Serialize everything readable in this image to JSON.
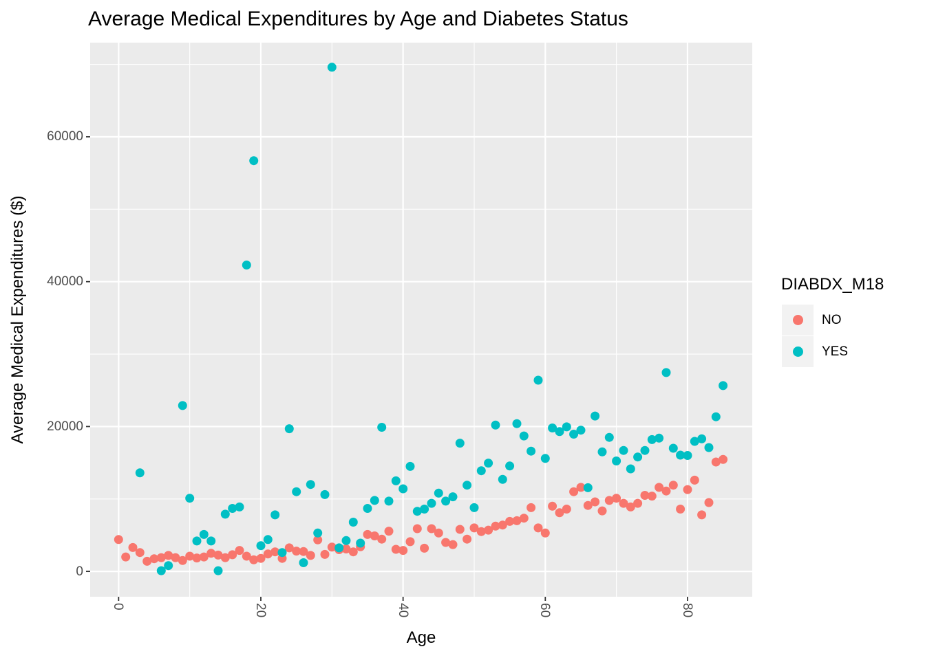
{
  "chart_data": {
    "type": "scatter",
    "title": "Average Medical Expenditures by Age and Diabetes Status",
    "xlabel": "Age",
    "ylabel": "Average Medical Expenditures ($)",
    "legend_title": "DIABDX_M18",
    "legend_position": "right",
    "grid": "on",
    "x_ticks": [
      0,
      20,
      40,
      60,
      80
    ],
    "x_minor_ticks": [
      10,
      30,
      50,
      70
    ],
    "y_ticks": [
      0,
      20000,
      40000,
      60000
    ],
    "y_minor_ticks": [
      10000,
      30000,
      50000,
      70000
    ],
    "xlim": [
      -4,
      89.1
    ],
    "ylim": [
      -3500,
      73000
    ],
    "colors": {
      "panel_background": "#EBEBEB",
      "grid": "#FFFFFF",
      "tick_marks": "#333333",
      "axis_text": "#4D4D4D",
      "text": "#000000",
      "legend_key_background": "#F2F2F2"
    },
    "series": [
      {
        "name": "NO",
        "color": "#F8766D",
        "points": [
          [
            0,
            4400
          ],
          [
            1,
            2000
          ],
          [
            2,
            3300
          ],
          [
            3,
            2600
          ],
          [
            4,
            1400
          ],
          [
            5,
            1750
          ],
          [
            6,
            1900
          ],
          [
            7,
            2200
          ],
          [
            8,
            1900
          ],
          [
            9,
            1500
          ],
          [
            10,
            2100
          ],
          [
            11,
            1850
          ],
          [
            12,
            2000
          ],
          [
            13,
            2500
          ],
          [
            14,
            2250
          ],
          [
            15,
            1900
          ],
          [
            16,
            2300
          ],
          [
            17,
            2900
          ],
          [
            18,
            2100
          ],
          [
            19,
            1600
          ],
          [
            20,
            1800
          ],
          [
            21,
            2400
          ],
          [
            22,
            2700
          ],
          [
            23,
            1800
          ],
          [
            24,
            3250
          ],
          [
            25,
            2800
          ],
          [
            26,
            2750
          ],
          [
            27,
            2200
          ],
          [
            28,
            4350
          ],
          [
            29,
            2350
          ],
          [
            30,
            3350
          ],
          [
            31,
            3000
          ],
          [
            32,
            3100
          ],
          [
            33,
            2700
          ],
          [
            34,
            3400
          ],
          [
            35,
            5100
          ],
          [
            36,
            4900
          ],
          [
            37,
            4450
          ],
          [
            38,
            5550
          ],
          [
            39,
            3050
          ],
          [
            40,
            2900
          ],
          [
            41,
            4100
          ],
          [
            42,
            5900
          ],
          [
            43,
            3200
          ],
          [
            44,
            5900
          ],
          [
            45,
            5300
          ],
          [
            46,
            4000
          ],
          [
            47,
            3700
          ],
          [
            48,
            5800
          ],
          [
            49,
            4450
          ],
          [
            50,
            6000
          ],
          [
            51,
            5500
          ],
          [
            52,
            5700
          ],
          [
            53,
            6250
          ],
          [
            54,
            6400
          ],
          [
            55,
            6900
          ],
          [
            56,
            7000
          ],
          [
            57,
            7350
          ],
          [
            58,
            8800
          ],
          [
            59,
            6000
          ],
          [
            60,
            5300
          ],
          [
            61,
            9000
          ],
          [
            62,
            8100
          ],
          [
            63,
            8600
          ],
          [
            64,
            11000
          ],
          [
            65,
            11600
          ],
          [
            66,
            9100
          ],
          [
            67,
            9600
          ],
          [
            68,
            8350
          ],
          [
            69,
            9800
          ],
          [
            70,
            10100
          ],
          [
            71,
            9400
          ],
          [
            72,
            8900
          ],
          [
            73,
            9400
          ],
          [
            74,
            10500
          ],
          [
            75,
            10400
          ],
          [
            76,
            11600
          ],
          [
            77,
            11100
          ],
          [
            78,
            11900
          ],
          [
            79,
            8600
          ],
          [
            80,
            11300
          ],
          [
            81,
            12600
          ],
          [
            82,
            7800
          ],
          [
            83,
            9500
          ],
          [
            84,
            15100
          ],
          [
            85,
            15450
          ]
        ]
      },
      {
        "name": "YES",
        "color": "#00BFC4",
        "points": [
          [
            3,
            13600
          ],
          [
            6,
            100
          ],
          [
            7,
            800
          ],
          [
            9,
            22900
          ],
          [
            10,
            10100
          ],
          [
            11,
            4200
          ],
          [
            12,
            5100
          ],
          [
            13,
            4200
          ],
          [
            14,
            100
          ],
          [
            15,
            7900
          ],
          [
            16,
            8700
          ],
          [
            17,
            8900
          ],
          [
            18,
            42300
          ],
          [
            19,
            56700
          ],
          [
            20,
            3550
          ],
          [
            21,
            4400
          ],
          [
            22,
            7800
          ],
          [
            23,
            2600
          ],
          [
            24,
            19700
          ],
          [
            25,
            11000
          ],
          [
            26,
            1200
          ],
          [
            27,
            12000
          ],
          [
            28,
            5300
          ],
          [
            29,
            10600
          ],
          [
            30,
            69600
          ],
          [
            31,
            3250
          ],
          [
            32,
            4250
          ],
          [
            33,
            6800
          ],
          [
            34,
            3900
          ],
          [
            35,
            8700
          ],
          [
            36,
            9800
          ],
          [
            37,
            19900
          ],
          [
            38,
            9700
          ],
          [
            39,
            12500
          ],
          [
            40,
            11400
          ],
          [
            41,
            14500
          ],
          [
            42,
            8300
          ],
          [
            43,
            8600
          ],
          [
            44,
            9400
          ],
          [
            45,
            10800
          ],
          [
            46,
            9700
          ],
          [
            47,
            10300
          ],
          [
            48,
            17700
          ],
          [
            49,
            11900
          ],
          [
            50,
            8800
          ],
          [
            51,
            13900
          ],
          [
            52,
            14950
          ],
          [
            53,
            20200
          ],
          [
            54,
            12700
          ],
          [
            55,
            14550
          ],
          [
            56,
            20400
          ],
          [
            57,
            18700
          ],
          [
            58,
            16600
          ],
          [
            59,
            26400
          ],
          [
            60,
            15600
          ],
          [
            61,
            19800
          ],
          [
            62,
            19300
          ],
          [
            63,
            19950
          ],
          [
            64,
            18950
          ],
          [
            65,
            19500
          ],
          [
            66,
            11550
          ],
          [
            67,
            21450
          ],
          [
            68,
            16500
          ],
          [
            69,
            18500
          ],
          [
            70,
            15250
          ],
          [
            71,
            16700
          ],
          [
            72,
            14150
          ],
          [
            73,
            15800
          ],
          [
            74,
            16700
          ],
          [
            75,
            18200
          ],
          [
            76,
            18400
          ],
          [
            77,
            27450
          ],
          [
            78,
            17000
          ],
          [
            79,
            16050
          ],
          [
            80,
            16000
          ],
          [
            81,
            17950
          ],
          [
            82,
            18300
          ],
          [
            83,
            17100
          ],
          [
            84,
            21350
          ],
          [
            85,
            25650
          ]
        ]
      }
    ]
  }
}
